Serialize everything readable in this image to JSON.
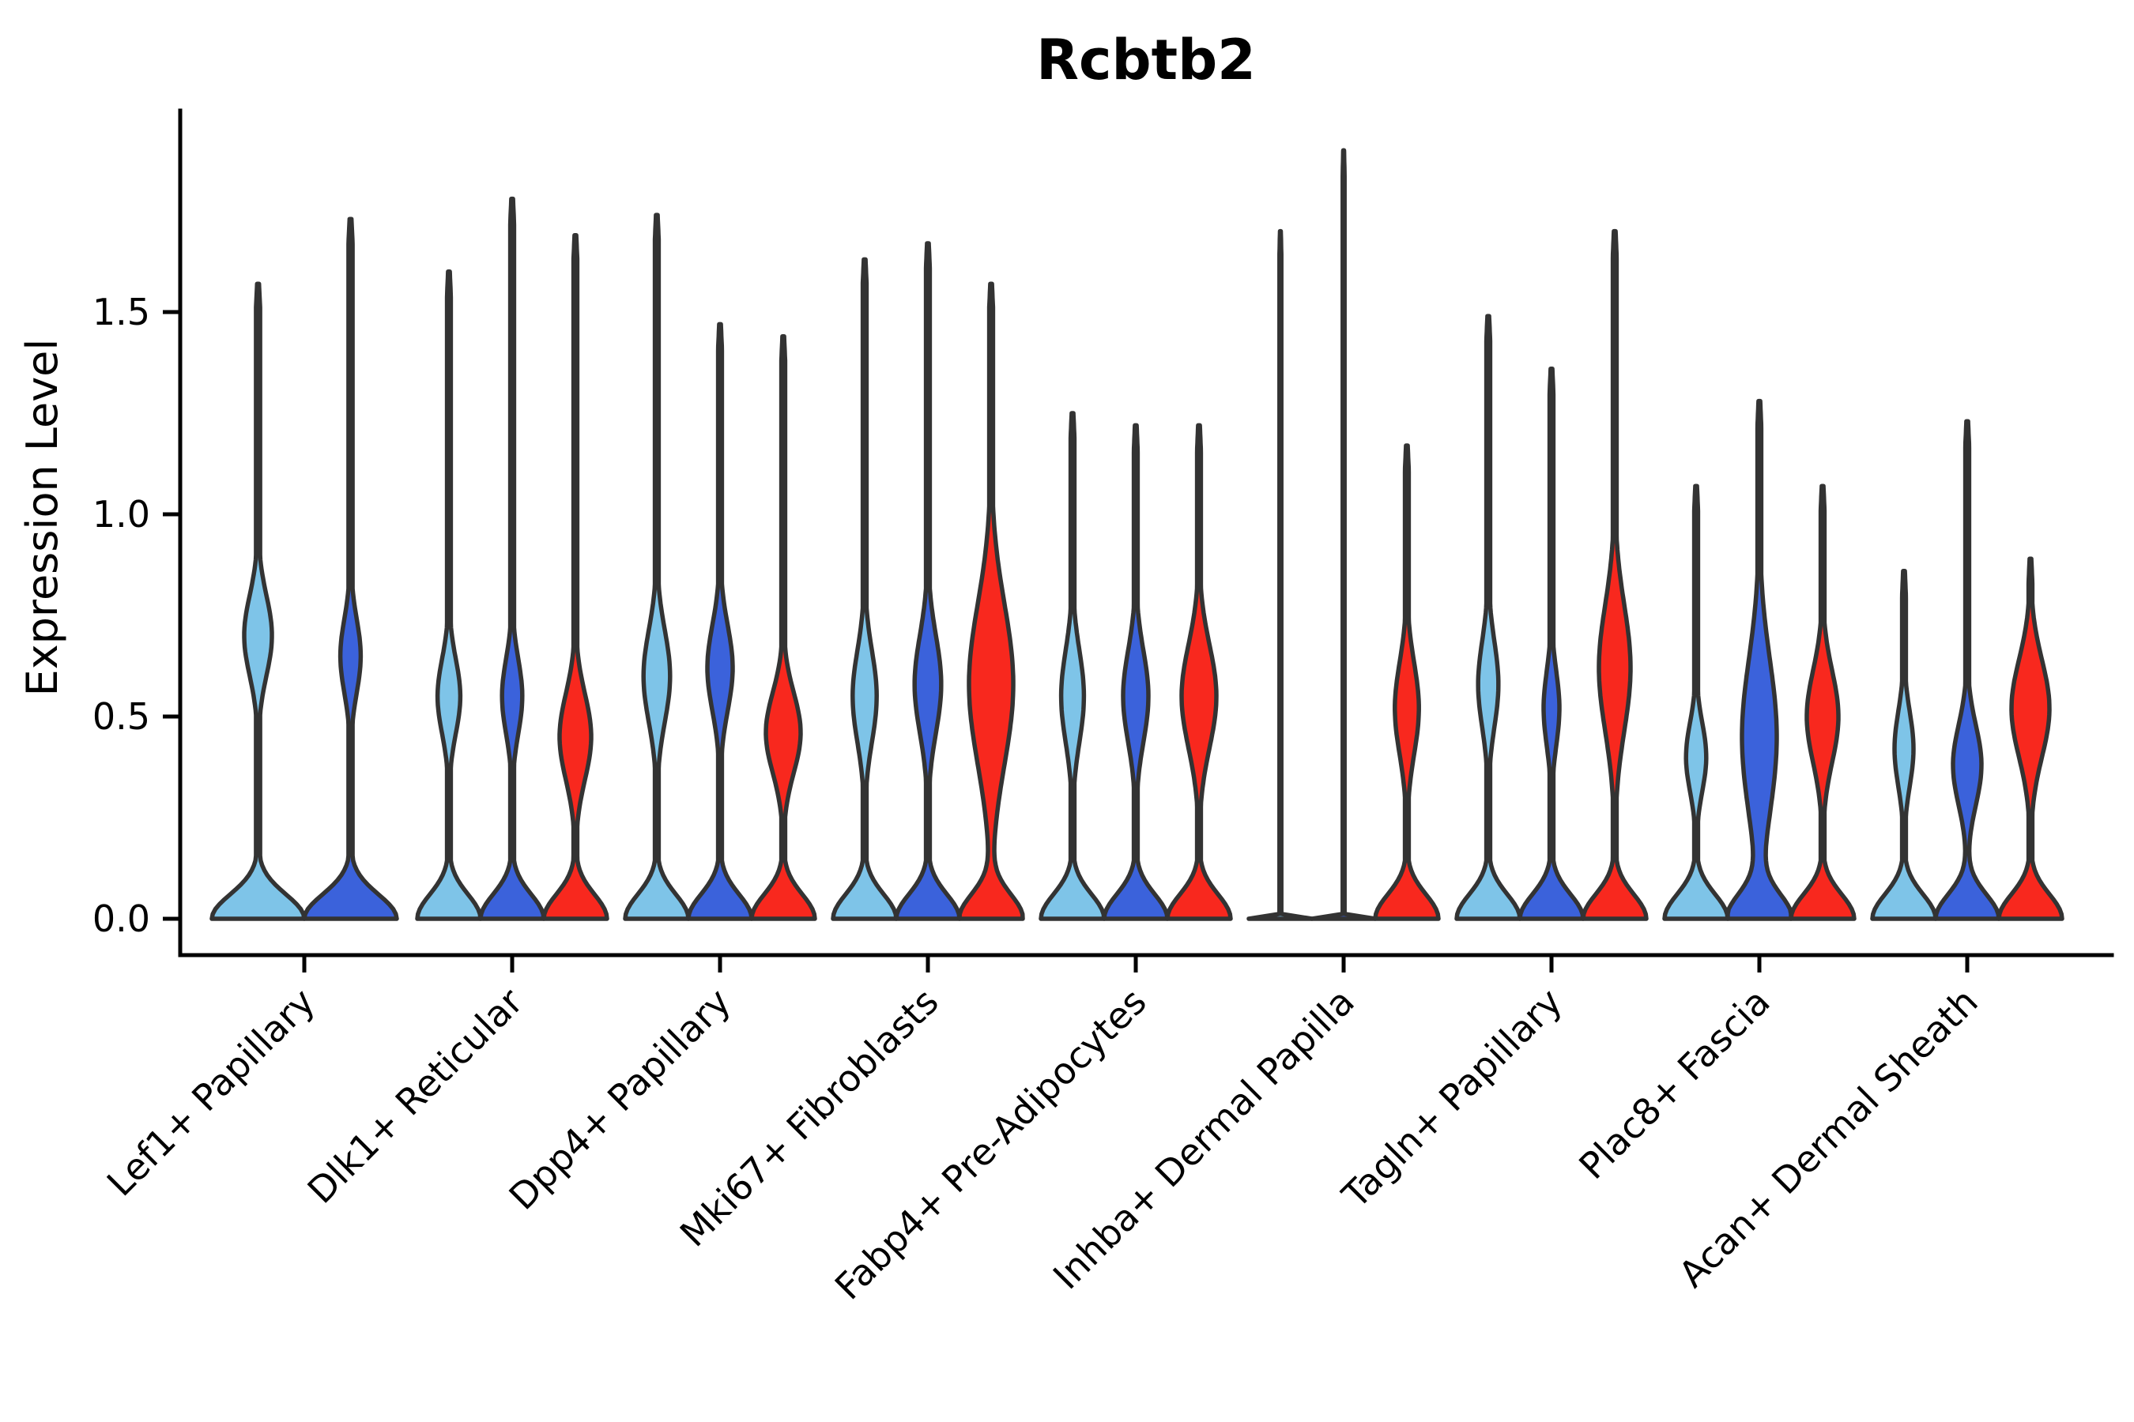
{
  "figure": {
    "title": "Rcbtb2",
    "ylabel": "Expression Level"
  },
  "chart_data": {
    "type": "violin",
    "title": "Rcbtb2",
    "xlabel": "",
    "ylabel": "Expression Level",
    "ylim": [
      0,
      1.95
    ],
    "yticks": [
      0.0,
      0.5,
      1.0,
      1.5
    ],
    "yticklabels": [
      "0.0",
      "0.5",
      "1.0",
      "1.5"
    ],
    "x_tick_rotation": 45,
    "grid": false,
    "legend_position": "none",
    "colors": {
      "skyblue": "#7EC4E8",
      "royalblue": "#3B62DB",
      "red": "#F8281E",
      "edge": "#333333",
      "axis": "#000000"
    },
    "hue_order": [
      "skyblue",
      "royalblue",
      "red"
    ],
    "categories": [
      "Lef1+ Papillary",
      "Dlk1+ Reticular",
      "Dpp4+ Papillary",
      "Mki67+ Fibroblasts",
      "Fabp4+ Pre-Adipocytes",
      "Inhba+ Dermal Papilla",
      "Tagln+ Papillary",
      "Plac8+ Fascia",
      "Acan+ Dermal Sheath"
    ],
    "groups": [
      {
        "category": "Lef1+ Papillary",
        "violins": [
          {
            "color": "skyblue",
            "max_expression": 1.57,
            "mode": 0.7,
            "bulge_sigma": 0.14,
            "bulge_amp": 0.3,
            "degenerate": false
          },
          {
            "color": "royalblue",
            "max_expression": 1.73,
            "mode": 0.65,
            "bulge_sigma": 0.13,
            "bulge_amp": 0.22,
            "degenerate": false
          }
        ]
      },
      {
        "category": "Dlk1+ Reticular",
        "violins": [
          {
            "color": "skyblue",
            "max_expression": 1.6,
            "mode": 0.55,
            "bulge_sigma": 0.13,
            "bulge_amp": 0.36,
            "degenerate": false
          },
          {
            "color": "royalblue",
            "max_expression": 1.78,
            "mode": 0.55,
            "bulge_sigma": 0.13,
            "bulge_amp": 0.32,
            "degenerate": false
          },
          {
            "color": "red",
            "max_expression": 1.69,
            "mode": 0.45,
            "bulge_sigma": 0.15,
            "bulge_amp": 0.5,
            "degenerate": false
          }
        ]
      },
      {
        "category": "Dpp4+ Papillary",
        "violins": [
          {
            "color": "skyblue",
            "max_expression": 1.74,
            "mode": 0.6,
            "bulge_sigma": 0.16,
            "bulge_amp": 0.42,
            "degenerate": false
          },
          {
            "color": "royalblue",
            "max_expression": 1.47,
            "mode": 0.62,
            "bulge_sigma": 0.15,
            "bulge_amp": 0.4,
            "degenerate": false
          },
          {
            "color": "red",
            "max_expression": 1.44,
            "mode": 0.46,
            "bulge_sigma": 0.14,
            "bulge_amp": 0.55,
            "degenerate": false
          }
        ]
      },
      {
        "category": "Mki67+ Fibroblasts",
        "violins": [
          {
            "color": "skyblue",
            "max_expression": 1.63,
            "mode": 0.55,
            "bulge_sigma": 0.16,
            "bulge_amp": 0.38,
            "degenerate": false
          },
          {
            "color": "royalblue",
            "max_expression": 1.67,
            "mode": 0.58,
            "bulge_sigma": 0.17,
            "bulge_amp": 0.42,
            "degenerate": false
          },
          {
            "color": "red",
            "max_expression": 1.57,
            "mode": 0.58,
            "bulge_sigma": 0.28,
            "bulge_amp": 0.7,
            "degenerate": false
          }
        ]
      },
      {
        "category": "Fabp4+ Pre-Adipocytes",
        "violins": [
          {
            "color": "skyblue",
            "max_expression": 1.25,
            "mode": 0.55,
            "bulge_sigma": 0.16,
            "bulge_amp": 0.36,
            "degenerate": false
          },
          {
            "color": "royalblue",
            "max_expression": 1.22,
            "mode": 0.55,
            "bulge_sigma": 0.16,
            "bulge_amp": 0.4,
            "degenerate": false
          },
          {
            "color": "red",
            "max_expression": 1.22,
            "mode": 0.55,
            "bulge_sigma": 0.18,
            "bulge_amp": 0.55,
            "degenerate": false
          }
        ]
      },
      {
        "category": "Inhba+ Dermal Papilla",
        "violins": [
          {
            "color": "skyblue",
            "max_expression": 1.7,
            "mode": 0.0,
            "bulge_sigma": 0.1,
            "bulge_amp": 0.0,
            "degenerate": true
          },
          {
            "color": "royalblue",
            "max_expression": 1.9,
            "mode": 0.0,
            "bulge_sigma": 0.1,
            "bulge_amp": 0.0,
            "degenerate": true
          },
          {
            "color": "red",
            "max_expression": 1.17,
            "mode": 0.52,
            "bulge_sigma": 0.16,
            "bulge_amp": 0.38,
            "degenerate": false
          }
        ]
      },
      {
        "category": "Tagln+ Papillary",
        "violins": [
          {
            "color": "skyblue",
            "max_expression": 1.49,
            "mode": 0.58,
            "bulge_sigma": 0.15,
            "bulge_amp": 0.32,
            "degenerate": false
          },
          {
            "color": "royalblue",
            "max_expression": 1.36,
            "mode": 0.52,
            "bulge_sigma": 0.13,
            "bulge_amp": 0.25,
            "degenerate": false
          },
          {
            "color": "red",
            "max_expression": 1.7,
            "mode": 0.62,
            "bulge_sigma": 0.22,
            "bulge_amp": 0.5,
            "degenerate": false
          }
        ]
      },
      {
        "category": "Plac8+ Fascia",
        "violins": [
          {
            "color": "skyblue",
            "max_expression": 1.07,
            "mode": 0.4,
            "bulge_sigma": 0.12,
            "bulge_amp": 0.32,
            "degenerate": false
          },
          {
            "color": "royalblue",
            "max_expression": 1.28,
            "mode": 0.45,
            "bulge_sigma": 0.27,
            "bulge_amp": 0.55,
            "degenerate": false
          },
          {
            "color": "red",
            "max_expression": 1.07,
            "mode": 0.5,
            "bulge_sigma": 0.16,
            "bulge_amp": 0.5,
            "degenerate": false
          }
        ]
      },
      {
        "category": "Acan+ Dermal Sheath",
        "violins": [
          {
            "color": "skyblue",
            "max_expression": 0.86,
            "mode": 0.42,
            "bulge_sigma": 0.13,
            "bulge_amp": 0.3,
            "degenerate": false
          },
          {
            "color": "royalblue",
            "max_expression": 1.23,
            "mode": 0.38,
            "bulge_sigma": 0.14,
            "bulge_amp": 0.45,
            "degenerate": false
          },
          {
            "color": "red",
            "max_expression": 0.89,
            "mode": 0.52,
            "bulge_sigma": 0.17,
            "bulge_amp": 0.6,
            "degenerate": false
          }
        ]
      }
    ]
  }
}
